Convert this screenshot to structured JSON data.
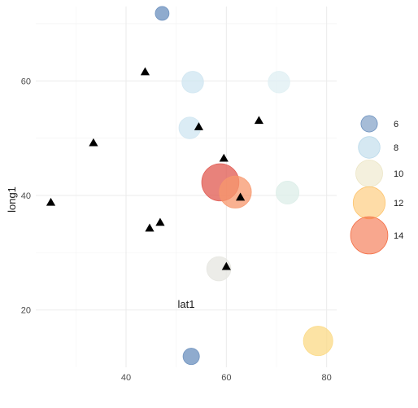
{
  "chart_data": {
    "type": "scatter",
    "xlabel": "lat1",
    "ylabel": "long1",
    "xlim": [
      22,
      82
    ],
    "ylim": [
      10,
      73
    ],
    "x_ticks": [
      40,
      60,
      80
    ],
    "y_ticks": [
      20,
      40,
      60
    ],
    "grid": true,
    "legend_position": "right",
    "size_legend": {
      "values": [
        6,
        8,
        10,
        12,
        14
      ],
      "labels": [
        "6",
        "8",
        "10",
        "12",
        "14"
      ],
      "colors": [
        "#6a8fbd",
        "#b9d9ea",
        "#ece6c6",
        "#fdc46d",
        "#f46d43"
      ]
    },
    "bubble_points": [
      {
        "x": 47.2,
        "y": 71.8,
        "size": 5,
        "color": "#6a8fbd"
      },
      {
        "x": 53.0,
        "y": 11.9,
        "size": 6,
        "color": "#6a8fbd"
      },
      {
        "x": 53.3,
        "y": 59.8,
        "size": 8,
        "color": "#cfe6f1"
      },
      {
        "x": 52.7,
        "y": 51.8,
        "size": 8,
        "color": "#cfe6f1"
      },
      {
        "x": 70.5,
        "y": 59.8,
        "size": 8,
        "color": "#dfeff3"
      },
      {
        "x": 72.2,
        "y": 40.5,
        "size": 8.5,
        "color": "#dcede8"
      },
      {
        "x": 58.5,
        "y": 27.2,
        "size": 9,
        "color": "#e6e6e0"
      },
      {
        "x": 78.3,
        "y": 14.6,
        "size": 11,
        "color": "#fbd985"
      },
      {
        "x": 61.8,
        "y": 40.6,
        "size": 12,
        "color": "#f7976c"
      },
      {
        "x": 58.8,
        "y": 42.3,
        "size": 14,
        "color": "#e0584f"
      }
    ],
    "triangle_points": [
      {
        "x": 25.0,
        "y": 38.8
      },
      {
        "x": 33.5,
        "y": 49.2
      },
      {
        "x": 43.8,
        "y": 61.6
      },
      {
        "x": 44.7,
        "y": 34.3
      },
      {
        "x": 46.8,
        "y": 35.3
      },
      {
        "x": 54.5,
        "y": 52.0
      },
      {
        "x": 59.5,
        "y": 46.5
      },
      {
        "x": 62.8,
        "y": 39.7
      },
      {
        "x": 60.0,
        "y": 27.6
      },
      {
        "x": 66.5,
        "y": 53.1
      }
    ]
  }
}
